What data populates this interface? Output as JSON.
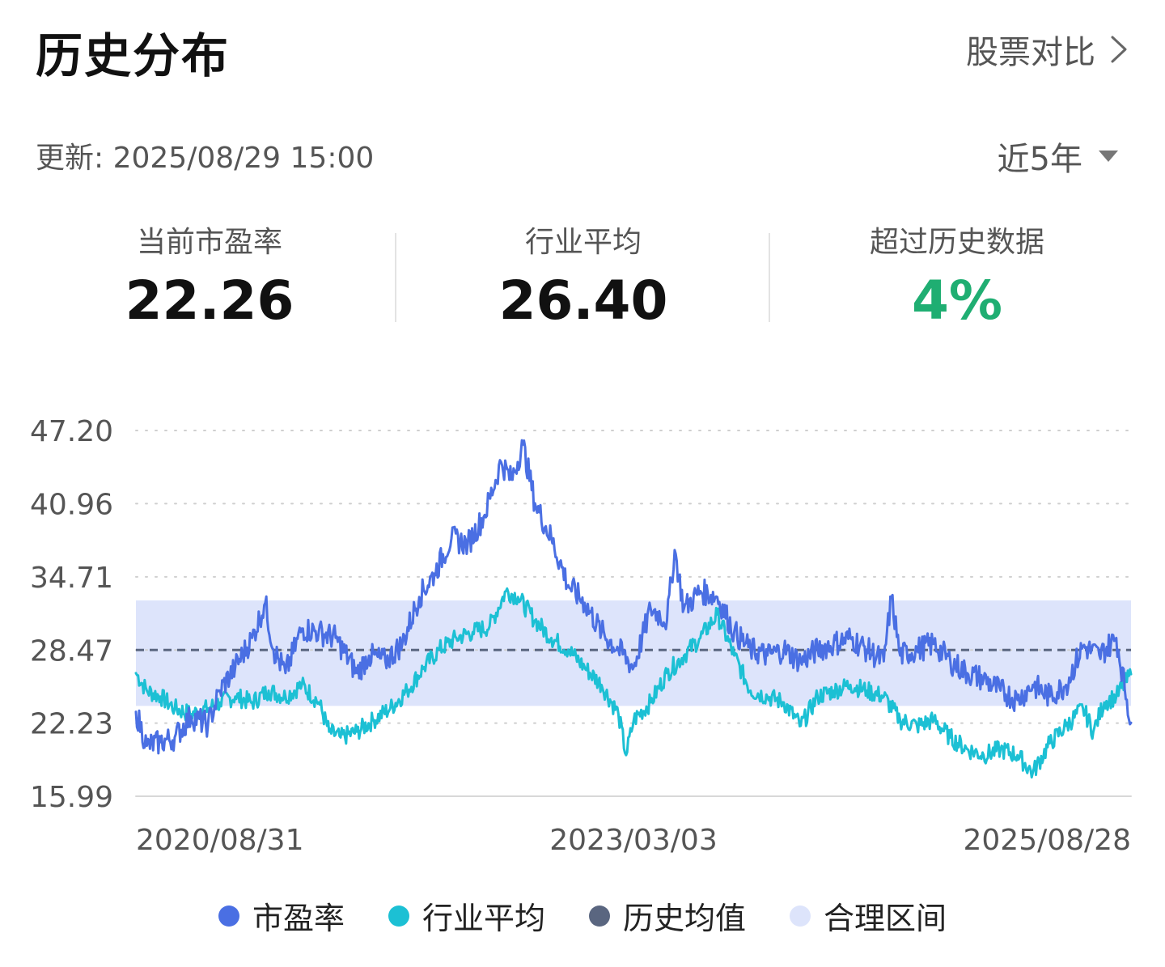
{
  "header": {
    "title": "历史分布",
    "compare_label": "股票对比",
    "updated": "更新: 2025/08/29 15:00",
    "range": "近5年"
  },
  "stats": [
    {
      "label": "当前市盈率",
      "value": "22.26",
      "color": "#111111"
    },
    {
      "label": "行业平均",
      "value": "26.40",
      "color": "#111111"
    },
    {
      "label": "超过历史数据",
      "value": "4%",
      "color": "#1fae72"
    }
  ],
  "colors": {
    "pe": "#4a6fe3",
    "industry": "#1cc0d4",
    "mean": "#5a6680",
    "band": "#dde4fb"
  },
  "chart_data": {
    "type": "line",
    "y_ticks": [
      "47.20",
      "40.96",
      "34.71",
      "28.47",
      "22.23",
      "15.99"
    ],
    "ylim": [
      15.99,
      47.2
    ],
    "x_labels": [
      "2020/08/31",
      "2023/03/03",
      "2025/08/28"
    ],
    "x_range": [
      "2020/08/31",
      "2025/08/28"
    ],
    "grid": "dotted horizontal",
    "legend_position": "bottom",
    "history_mean": 28.47,
    "reasonable_range": [
      23.7,
      32.7
    ],
    "series": [
      {
        "name": "市盈率",
        "color": "#4a6fe3",
        "points": [
          [
            "2020/08/31",
            23.2
          ],
          [
            "2020/09/20",
            20.3
          ],
          [
            "2020/10/15",
            20.6
          ],
          [
            "2020/11/10",
            21.0
          ],
          [
            "2020/12/10",
            22.8
          ],
          [
            "2021/01/10",
            22.1
          ],
          [
            "2021/02/01",
            25.0
          ],
          [
            "2021/03/01",
            27.0
          ],
          [
            "2021/04/01",
            29.5
          ],
          [
            "2021/04/25",
            32.5
          ],
          [
            "2021/05/10",
            28.5
          ],
          [
            "2021/06/01",
            26.5
          ],
          [
            "2021/07/01",
            30.3
          ],
          [
            "2021/08/01",
            30.0
          ],
          [
            "2021/09/01",
            29.5
          ],
          [
            "2021/10/10",
            26.5
          ],
          [
            "2021/11/01",
            28.0
          ],
          [
            "2021/12/01",
            27.5
          ],
          [
            "2022/01/01",
            29.0
          ],
          [
            "2022/02/01",
            33.0
          ],
          [
            "2022/03/01",
            35.0
          ],
          [
            "2022/04/01",
            38.0
          ],
          [
            "2022/05/01",
            37.5
          ],
          [
            "2022/06/01",
            40.0
          ],
          [
            "2022/07/01",
            44.5
          ],
          [
            "2022/07/20",
            43.0
          ],
          [
            "2022/08/10",
            46.0
          ],
          [
            "2022/09/01",
            41.0
          ],
          [
            "2022/10/01",
            38.0
          ],
          [
            "2022/11/01",
            34.0
          ],
          [
            "2022/12/01",
            32.5
          ],
          [
            "2023/01/01",
            30.0
          ],
          [
            "2023/02/01",
            28.5
          ],
          [
            "2023/03/01",
            27.0
          ],
          [
            "2023/04/01",
            32.0
          ],
          [
            "2023/05/01",
            31.0
          ],
          [
            "2023/05/15",
            37.0
          ],
          [
            "2023/06/01",
            32.0
          ],
          [
            "2023/07/01",
            33.5
          ],
          [
            "2023/08/01",
            33.0
          ],
          [
            "2023/09/01",
            30.0
          ],
          [
            "2023/10/01",
            28.5
          ],
          [
            "2023/11/01",
            28.0
          ],
          [
            "2023/12/01",
            28.5
          ],
          [
            "2024/01/01",
            27.5
          ],
          [
            "2024/02/01",
            28.5
          ],
          [
            "2024/03/01",
            29.0
          ],
          [
            "2024/04/01",
            29.5
          ],
          [
            "2024/05/01",
            28.5
          ],
          [
            "2024/06/01",
            27.5
          ],
          [
            "2024/06/15",
            33.0
          ],
          [
            "2024/07/01",
            28.0
          ],
          [
            "2024/08/01",
            28.5
          ],
          [
            "2024/09/01",
            29.0
          ],
          [
            "2024/10/01",
            27.5
          ],
          [
            "2024/11/01",
            26.5
          ],
          [
            "2024/12/01",
            26.0
          ],
          [
            "2025/01/01",
            25.0
          ],
          [
            "2025/02/01",
            24.2
          ],
          [
            "2025/03/01",
            25.5
          ],
          [
            "2025/04/01",
            24.5
          ],
          [
            "2025/05/01",
            25.5
          ],
          [
            "2025/06/01",
            28.8
          ],
          [
            "2025/07/01",
            28.0
          ],
          [
            "2025/08/01",
            29.5
          ],
          [
            "2025/08/28",
            22.26
          ]
        ]
      },
      {
        "name": "行业平均",
        "color": "#1cc0d4",
        "points": [
          [
            "2020/08/31",
            26.5
          ],
          [
            "2020/09/20",
            25.0
          ],
          [
            "2020/10/15",
            24.5
          ],
          [
            "2020/11/10",
            23.5
          ],
          [
            "2020/12/10",
            23.0
          ],
          [
            "2021/01/10",
            23.5
          ],
          [
            "2021/02/01",
            24.0
          ],
          [
            "2021/03/01",
            24.5
          ],
          [
            "2021/04/01",
            24.0
          ],
          [
            "2021/05/01",
            25.0
          ],
          [
            "2021/06/01",
            24.5
          ],
          [
            "2021/07/01",
            25.5
          ],
          [
            "2021/08/01",
            24.0
          ],
          [
            "2021/08/20",
            21.5
          ],
          [
            "2021/09/10",
            21.0
          ],
          [
            "2021/10/10",
            21.5
          ],
          [
            "2021/11/10",
            22.5
          ],
          [
            "2021/12/10",
            23.5
          ],
          [
            "2022/01/10",
            25.0
          ],
          [
            "2022/02/10",
            27.0
          ],
          [
            "2022/03/10",
            28.5
          ],
          [
            "2022/04/10",
            29.5
          ],
          [
            "2022/05/10",
            30.0
          ],
          [
            "2022/06/10",
            30.5
          ],
          [
            "2022/07/10",
            33.5
          ],
          [
            "2022/08/01",
            33.0
          ],
          [
            "2022/09/01",
            31.0
          ],
          [
            "2022/10/01",
            29.5
          ],
          [
            "2022/11/01",
            28.5
          ],
          [
            "2022/12/01",
            27.0
          ],
          [
            "2023/01/01",
            25.5
          ],
          [
            "2023/02/01",
            23.0
          ],
          [
            "2023/02/15",
            19.5
          ],
          [
            "2023/03/01",
            22.5
          ],
          [
            "2023/04/01",
            24.0
          ],
          [
            "2023/05/01",
            26.5
          ],
          [
            "2023/06/01",
            28.0
          ],
          [
            "2023/07/01",
            29.5
          ],
          [
            "2023/08/01",
            31.5
          ],
          [
            "2023/09/01",
            28.0
          ],
          [
            "2023/10/01",
            25.0
          ],
          [
            "2023/11/01",
            24.5
          ],
          [
            "2023/12/01",
            24.0
          ],
          [
            "2024/01/01",
            22.0
          ],
          [
            "2024/02/01",
            24.5
          ],
          [
            "2024/03/01",
            25.0
          ],
          [
            "2024/04/01",
            25.5
          ],
          [
            "2024/05/01",
            25.0
          ],
          [
            "2024/06/01",
            24.5
          ],
          [
            "2024/07/01",
            22.5
          ],
          [
            "2024/08/01",
            22.0
          ],
          [
            "2024/09/01",
            22.5
          ],
          [
            "2024/10/01",
            21.0
          ],
          [
            "2024/11/01",
            20.0
          ],
          [
            "2024/12/01",
            19.5
          ],
          [
            "2025/01/01",
            20.0
          ],
          [
            "2025/02/01",
            19.5
          ],
          [
            "2025/03/01",
            18.0
          ],
          [
            "2025/04/01",
            20.5
          ],
          [
            "2025/05/01",
            22.0
          ],
          [
            "2025/06/01",
            23.5
          ],
          [
            "2025/06/20",
            21.5
          ],
          [
            "2025/07/10",
            24.0
          ],
          [
            "2025/08/01",
            24.5
          ],
          [
            "2025/08/28",
            26.4
          ]
        ]
      }
    ]
  },
  "legend": [
    {
      "label": "市盈率",
      "color": "#4a6fe3"
    },
    {
      "label": "行业平均",
      "color": "#1cc0d4"
    },
    {
      "label": "历史均值",
      "color": "#5a6680"
    },
    {
      "label": "合理区间",
      "color": "#dde4fb"
    }
  ]
}
